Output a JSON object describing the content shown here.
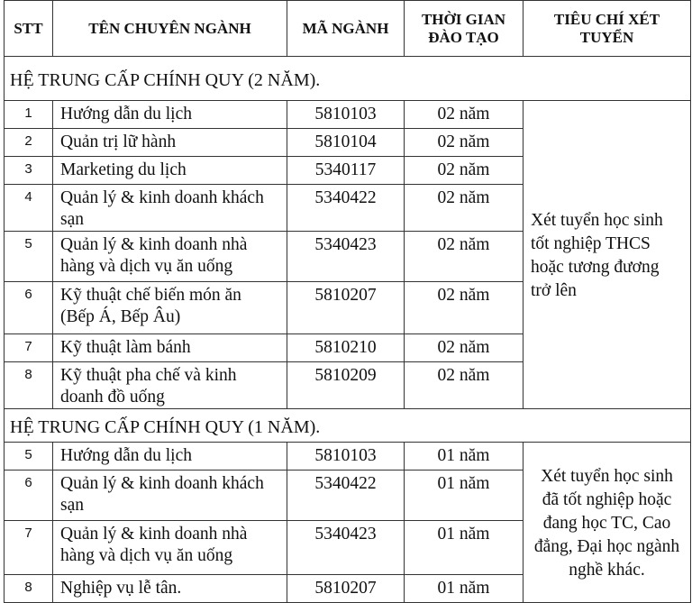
{
  "headers": {
    "stt": "STT",
    "name": "TÊN CHUYÊN NGÀNH",
    "code": "MÃ NGÀNH",
    "duration": "THỜI GIAN ĐÀO TẠO",
    "criteria": "TIÊU CHÍ XÉT TUYỂN"
  },
  "sections": [
    {
      "title": "HỆ TRUNG CẤP CHÍNH QUY (2 NĂM).",
      "criteria": "Xét tuyển học sinh tốt nghiệp THCS hoặc tương đương trở lên",
      "rows": [
        {
          "stt": "1",
          "name": "Hướng dẫn du lịch",
          "code": "5810103",
          "duration": "02 năm"
        },
        {
          "stt": "2",
          "name": "Quản trị lữ hành",
          "code": "5810104",
          "duration": "02 năm"
        },
        {
          "stt": "3",
          "name": "Marketing du lịch",
          "code": "5340117",
          "duration": "02 năm"
        },
        {
          "stt": "4",
          "name": "Quản lý & kinh doanh khách sạn",
          "code": "5340422",
          "duration": "02 năm"
        },
        {
          "stt": "5",
          "name": "Quản lý & kinh doanh nhà hàng và dịch vụ ăn uống",
          "code": "5340423",
          "duration": "02 năm"
        },
        {
          "stt": "6",
          "name": "Kỹ thuật chế biến món ăn (Bếp Á, Bếp Âu)",
          "code": "5810207",
          "duration": "02 năm"
        },
        {
          "stt": "7",
          "name": "Kỹ thuật làm bánh",
          "code": "5810210",
          "duration": "02 năm"
        },
        {
          "stt": "8",
          "name": "Kỹ thuật pha chế và kinh doanh đồ uống",
          "code": "5810209",
          "duration": "02 năm"
        }
      ]
    },
    {
      "title": "HỆ TRUNG CẤP CHÍNH QUY (1 NĂM).",
      "criteria": "Xét tuyển học sinh đã tốt nghiệp hoặc đang học TC, Cao đẳng, Đại học ngành nghề khác.",
      "rows": [
        {
          "stt": "5",
          "name": "Hướng dẫn du lịch",
          "code": "5810103",
          "duration": "01 năm"
        },
        {
          "stt": "6",
          "name": "Quản lý & kinh doanh khách sạn",
          "code": "5340422",
          "duration": "01 năm"
        },
        {
          "stt": "7",
          "name": "Quản lý & kinh doanh nhà hàng và dịch vụ ăn uống",
          "code": "5340423",
          "duration": "01 năm"
        },
        {
          "stt": "8",
          "name": "Nghiệp vụ lễ tân.",
          "code": "5810207",
          "duration": "01 năm"
        }
      ]
    }
  ]
}
